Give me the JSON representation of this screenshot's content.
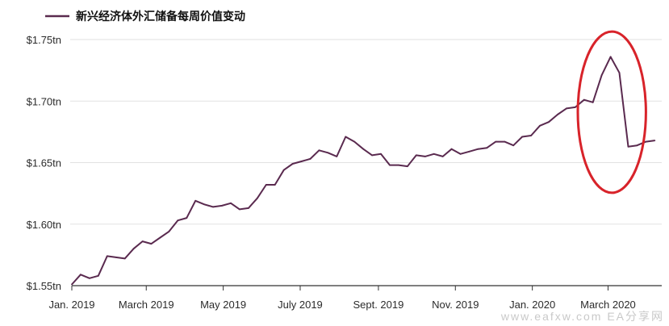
{
  "chart_data": {
    "type": "line",
    "title": "",
    "xlabel": "",
    "ylabel": "",
    "ylim": [
      1.55,
      1.75
    ],
    "yticks": [
      {
        "value": 1.75,
        "label": "$1.75tn"
      },
      {
        "value": 1.7,
        "label": "$1.70tn"
      },
      {
        "value": 1.65,
        "label": "$1.65tn"
      },
      {
        "value": 1.6,
        "label": "$1.60tn"
      },
      {
        "value": 1.55,
        "label": "$1.55tn"
      }
    ],
    "xticks": [
      {
        "date": "2019-01-01",
        "label": "Jan. 2019"
      },
      {
        "date": "2019-03-01",
        "label": "March 2019"
      },
      {
        "date": "2019-05-01",
        "label": "May 2019"
      },
      {
        "date": "2019-07-01",
        "label": "July 2019"
      },
      {
        "date": "2019-09-01",
        "label": "Sept. 2019"
      },
      {
        "date": "2019-11-01",
        "label": "Nov. 2019"
      },
      {
        "date": "2020-01-01",
        "label": "Jan. 2020"
      },
      {
        "date": "2020-03-01",
        "label": "March 2020"
      }
    ],
    "x_end": "2020-04-10",
    "grid": {
      "horizontal": true,
      "vertical": false
    },
    "legend_position": "top-left",
    "series": [
      {
        "name": "新兴经济体外汇储备每周价值变动",
        "color": "#5a2a4f",
        "points": [
          [
            "2019-01-01",
            1.551
          ],
          [
            "2019-01-08",
            1.559
          ],
          [
            "2019-01-15",
            1.556
          ],
          [
            "2019-01-22",
            1.558
          ],
          [
            "2019-01-29",
            1.574
          ],
          [
            "2019-02-05",
            1.573
          ],
          [
            "2019-02-12",
            1.572
          ],
          [
            "2019-02-19",
            1.58
          ],
          [
            "2019-02-26",
            1.586
          ],
          [
            "2019-03-05",
            1.584
          ],
          [
            "2019-03-12",
            1.589
          ],
          [
            "2019-03-19",
            1.594
          ],
          [
            "2019-03-26",
            1.603
          ],
          [
            "2019-04-02",
            1.605
          ],
          [
            "2019-04-09",
            1.619
          ],
          [
            "2019-04-16",
            1.616
          ],
          [
            "2019-04-23",
            1.614
          ],
          [
            "2019-04-30",
            1.615
          ],
          [
            "2019-05-07",
            1.617
          ],
          [
            "2019-05-14",
            1.612
          ],
          [
            "2019-05-21",
            1.613
          ],
          [
            "2019-05-28",
            1.621
          ],
          [
            "2019-06-04",
            1.632
          ],
          [
            "2019-06-11",
            1.632
          ],
          [
            "2019-06-18",
            1.644
          ],
          [
            "2019-06-25",
            1.649
          ],
          [
            "2019-07-02",
            1.651
          ],
          [
            "2019-07-09",
            1.653
          ],
          [
            "2019-07-16",
            1.66
          ],
          [
            "2019-07-23",
            1.658
          ],
          [
            "2019-07-30",
            1.655
          ],
          [
            "2019-08-06",
            1.671
          ],
          [
            "2019-08-13",
            1.667
          ],
          [
            "2019-08-20",
            1.661
          ],
          [
            "2019-08-27",
            1.656
          ],
          [
            "2019-09-03",
            1.657
          ],
          [
            "2019-09-10",
            1.648
          ],
          [
            "2019-09-17",
            1.648
          ],
          [
            "2019-09-24",
            1.647
          ],
          [
            "2019-10-01",
            1.656
          ],
          [
            "2019-10-08",
            1.655
          ],
          [
            "2019-10-15",
            1.657
          ],
          [
            "2019-10-22",
            1.655
          ],
          [
            "2019-10-29",
            1.661
          ],
          [
            "2019-11-05",
            1.657
          ],
          [
            "2019-11-12",
            1.659
          ],
          [
            "2019-11-19",
            1.661
          ],
          [
            "2019-11-26",
            1.662
          ],
          [
            "2019-12-03",
            1.667
          ],
          [
            "2019-12-10",
            1.667
          ],
          [
            "2019-12-17",
            1.664
          ],
          [
            "2019-12-24",
            1.671
          ],
          [
            "2019-12-31",
            1.672
          ],
          [
            "2020-01-07",
            1.68
          ],
          [
            "2020-01-14",
            1.683
          ],
          [
            "2020-01-21",
            1.689
          ],
          [
            "2020-01-28",
            1.694
          ],
          [
            "2020-02-04",
            1.695
          ],
          [
            "2020-02-11",
            1.701
          ],
          [
            "2020-02-18",
            1.699
          ],
          [
            "2020-02-25",
            1.721
          ],
          [
            "2020-03-03",
            1.736
          ],
          [
            "2020-03-10",
            1.723
          ],
          [
            "2020-03-17",
            1.663
          ],
          [
            "2020-03-24",
            1.664
          ],
          [
            "2020-03-31",
            1.667
          ],
          [
            "2020-04-07",
            1.668
          ]
        ]
      }
    ],
    "annotation": {
      "shape": "ellipse",
      "color": "#d8232a",
      "x_from": "2020-02-06",
      "x_to": "2020-03-31",
      "y_from": 1.6255,
      "y_to": 1.7565
    }
  },
  "watermark": "www.eafxw.com  EA分享网"
}
